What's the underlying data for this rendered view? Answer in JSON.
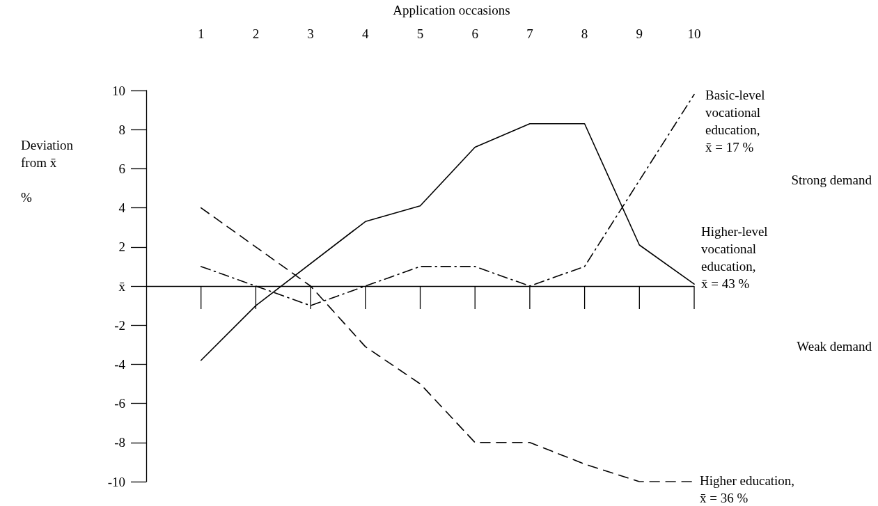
{
  "chart_data": {
    "type": "line",
    "xlabel": "Application occasions",
    "ylabel": "Deviation\nfrom x̄\n\n%",
    "xlim": [
      0,
      10
    ],
    "xticks": [
      1,
      2,
      3,
      4,
      5,
      6,
      7,
      8,
      9,
      10
    ],
    "ylim": [
      -10,
      10
    ],
    "yticks": [
      -10,
      -8,
      -6,
      -4,
      -2,
      {
        "value": 0,
        "label": "x̄"
      },
      2,
      4,
      6,
      8,
      10
    ],
    "grid": false,
    "legend": false,
    "marker": "none",
    "ref_lines": [
      {
        "axis": "y",
        "value": 0,
        "color": "#000000"
      }
    ],
    "series": [
      {
        "name": "Basic-level\nvocational\neducation,\nx̄ = 17 %",
        "color": "#000000",
        "line_style": "dashdot",
        "x": [
          1,
          2,
          3,
          4,
          5,
          6,
          7,
          8,
          10
        ],
        "values": [
          1.0,
          0,
          -1.0,
          0,
          1.0,
          1.0,
          0,
          1.0,
          9.8
        ]
      },
      {
        "name": "Higher-level\nvocational\neducation,\nx̄ = 43 %",
        "color": "#000000",
        "line_style": "solid",
        "x": [
          1,
          2,
          4,
          5,
          6,
          7,
          8,
          9,
          10
        ],
        "values": [
          -3.8,
          -1.0,
          3.3,
          4.1,
          7.1,
          8.3,
          8.3,
          2.1,
          0.1
        ]
      },
      {
        "name": "Higher education,\nx̄ = 36 %",
        "color": "#000000",
        "line_style": "dashed",
        "x": [
          1,
          2,
          3,
          4,
          5,
          6,
          7,
          8,
          9,
          10
        ],
        "values": [
          4.0,
          2.0,
          0,
          -3.1,
          -5.0,
          -8.0,
          -8.0,
          -9.1,
          -10.0,
          -10.0
        ]
      }
    ],
    "annotations": [
      "Strong demand",
      "Weak demand"
    ]
  }
}
